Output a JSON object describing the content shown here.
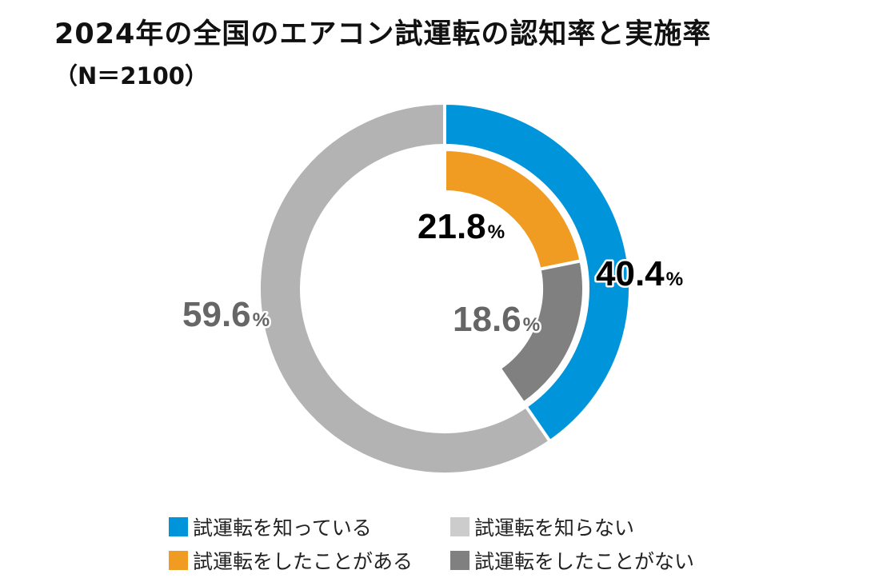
{
  "chart_data": {
    "type": "pie",
    "title": "2024年の全国のエアコン試運転の認知率と実施率",
    "subtitle": "（N＝2100）",
    "unit": "%",
    "rings": [
      {
        "ring": "outer",
        "slices": [
          {
            "name": "試運転を知っている",
            "value": 40.4,
            "label": "40.4",
            "color": "#0095DB",
            "label_color": "#000000"
          },
          {
            "name": "試運転を知らない",
            "value": 59.6,
            "label": "59.6",
            "color": "#B3B3B3",
            "label_color": "#666666"
          }
        ]
      },
      {
        "ring": "inner",
        "slices": [
          {
            "name": "試運転をしたことがある",
            "value": 21.8,
            "label": "21.8",
            "color": "#F09C22",
            "label_color": "#000000"
          },
          {
            "name": "試運転をしたことがない",
            "value": 18.6,
            "label": "18.6",
            "color": "#808080",
            "label_color": "#666666"
          }
        ]
      }
    ],
    "legend": [
      {
        "label": "試運転を知っている",
        "color": "#0095DB"
      },
      {
        "label": "試運転を知らない",
        "color": "#CCCCCC"
      },
      {
        "label": "試運転をしたことがある",
        "color": "#F09C22"
      },
      {
        "label": "試運転をしたことがない",
        "color": "#808080"
      }
    ],
    "legend_position": "bottom"
  }
}
